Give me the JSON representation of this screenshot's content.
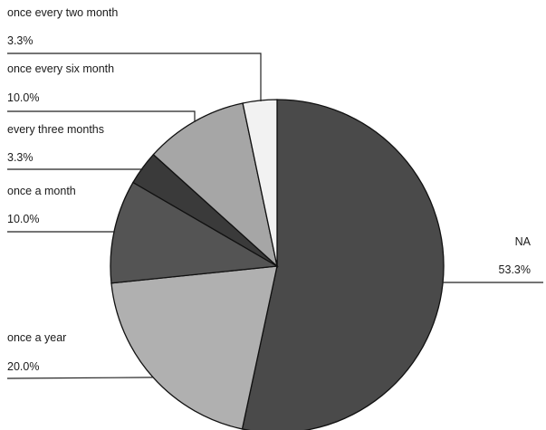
{
  "chart_data": {
    "type": "pie",
    "title": "",
    "slices": [
      {
        "label": "NA",
        "value": 53.3,
        "value_label": "53.3%",
        "color": "#4a4a4a"
      },
      {
        "label": "once a year",
        "value": 20.0,
        "value_label": "20.0%",
        "color": "#b0b0b0"
      },
      {
        "label": "once a month",
        "value": 10.0,
        "value_label": "10.0%",
        "color": "#545454"
      },
      {
        "label": "every three months",
        "value": 3.3,
        "value_label": "3.3%",
        "color": "#3a3a3a"
      },
      {
        "label": "once every six month",
        "value": 10.0,
        "value_label": "10.0%",
        "color": "#a6a6a6"
      },
      {
        "label": "once every two month",
        "value": 3.3,
        "value_label": "3.3%",
        "color": "#f2f2f2"
      }
    ],
    "start_angle": "12 o'clock",
    "direction": "clockwise",
    "legend": "none"
  }
}
